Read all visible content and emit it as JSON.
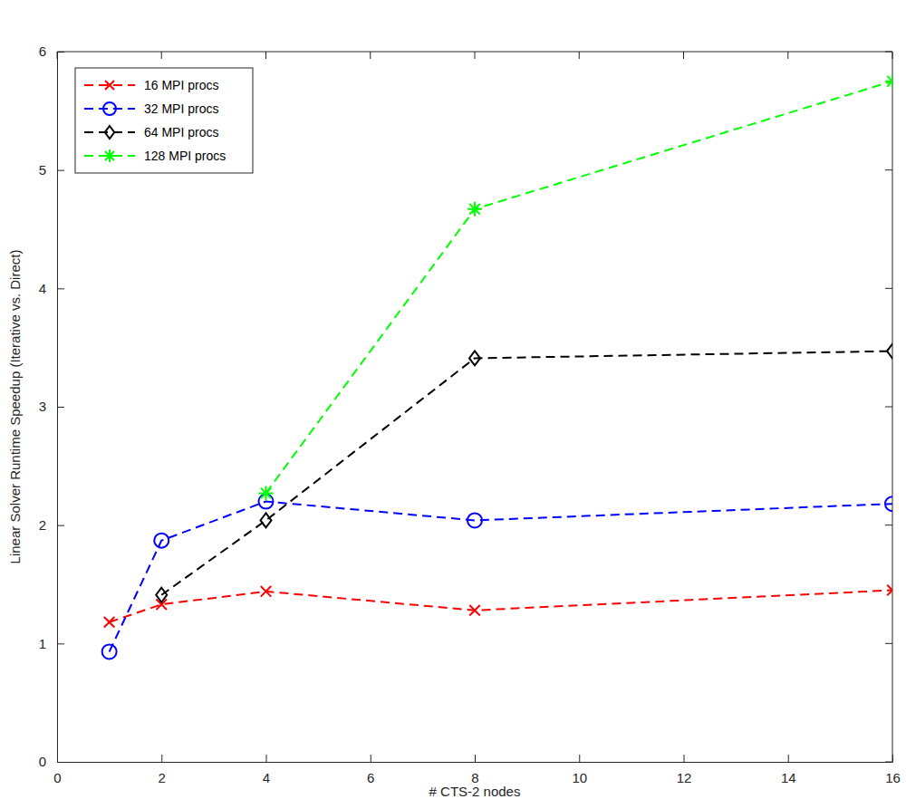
{
  "chart_data": {
    "type": "line",
    "x_label": "# CTS-2 nodes",
    "y_label": "Linear Solver Runtime Speedup (Iterative vs. Direct)",
    "x": [
      1,
      2,
      4,
      8,
      16
    ],
    "xlim": [
      0,
      16
    ],
    "xticks": [
      0,
      2,
      4,
      6,
      8,
      10,
      12,
      14,
      16
    ],
    "ylim": [
      0,
      6
    ],
    "yticks": [
      0,
      1,
      2,
      3,
      4,
      5,
      6
    ],
    "grid": false,
    "legend": "upper left",
    "series": [
      {
        "name": "16 MPI procs",
        "color": "#ff0000",
        "marker": "x",
        "line_style": "dashed",
        "values": [
          1.18,
          1.33,
          1.44,
          1.28,
          1.45
        ]
      },
      {
        "name": "32 MPI procs",
        "color": "#0000ff",
        "marker": "circle",
        "line_style": "dashed",
        "values": [
          0.93,
          1.87,
          2.2,
          2.04,
          2.18
        ]
      },
      {
        "name": "64 MPI procs",
        "color": "#000000",
        "marker": "diamond",
        "line_style": "dashed",
        "values": [
          null,
          1.41,
          2.04,
          3.41,
          3.47
        ]
      },
      {
        "name": "128 MPI procs",
        "color": "#00ff00",
        "marker": "asterisk",
        "line_style": "dashed",
        "values": [
          null,
          null,
          2.27,
          4.67,
          5.75
        ]
      }
    ]
  }
}
